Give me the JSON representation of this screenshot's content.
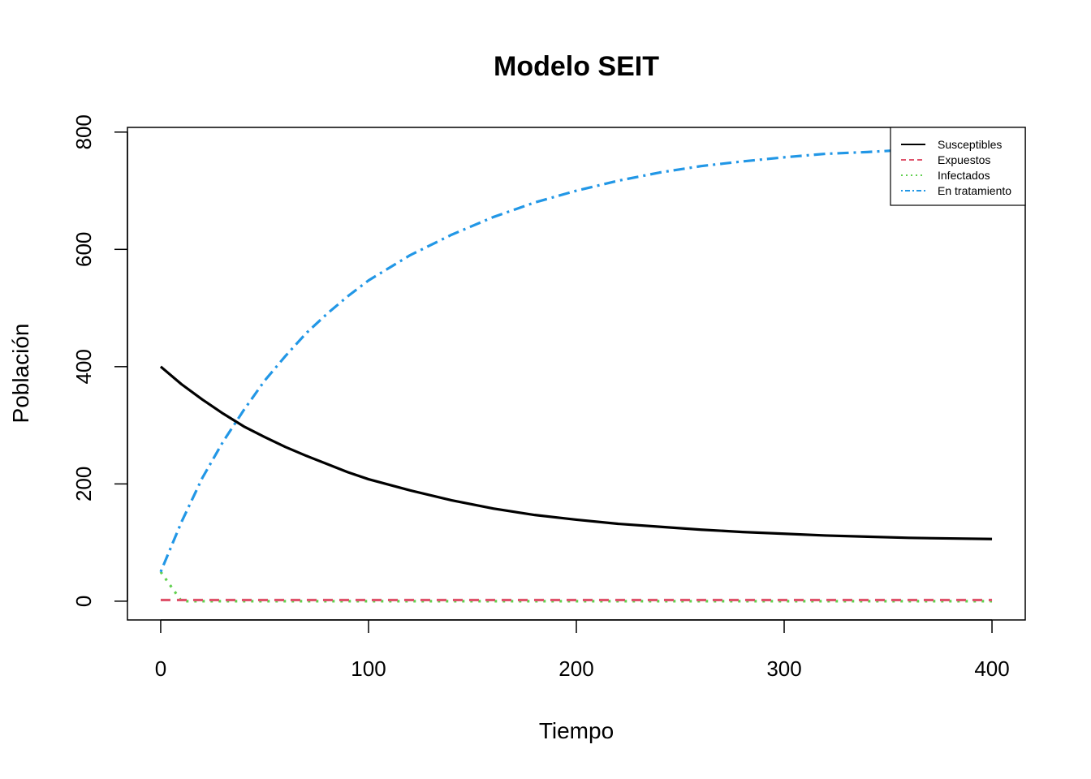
{
  "chart_data": {
    "type": "line",
    "title": "Modelo SEIT",
    "xlabel": "Tiempo",
    "ylabel": "Población",
    "xlim": [
      -16,
      416
    ],
    "ylim": [
      -32,
      808
    ],
    "xticks": [
      0,
      100,
      200,
      300,
      400
    ],
    "yticks": [
      0,
      200,
      400,
      600,
      800
    ],
    "legend_position": "top-right",
    "grid": false,
    "x": [
      0,
      10,
      20,
      30,
      40,
      50,
      60,
      70,
      80,
      90,
      100,
      120,
      140,
      160,
      180,
      200,
      220,
      240,
      260,
      280,
      300,
      320,
      340,
      360,
      380,
      400
    ],
    "series": [
      {
        "name": "Susceptibles",
        "color": "#000000",
        "dash": "solid",
        "values": [
          400,
          370,
          344,
          320,
          298,
          280,
          263,
          248,
          234,
          220,
          208,
          189,
          172,
          158,
          147,
          139,
          132,
          127,
          122,
          118,
          115,
          112,
          110,
          108,
          107,
          106
        ]
      },
      {
        "name": "Expuestos",
        "color": "#DF536B",
        "dash": "dashed",
        "values": [
          2,
          2,
          2,
          2,
          2,
          2,
          2,
          2,
          2,
          2,
          2,
          2,
          2,
          2,
          2,
          2,
          2,
          2,
          2,
          2,
          2,
          2,
          2,
          2,
          2,
          2
        ]
      },
      {
        "name": "Infectados",
        "color": "#61D04F",
        "dash": "dotted",
        "values": [
          50,
          0,
          0,
          0,
          0,
          0,
          0,
          0,
          0,
          0,
          0,
          0,
          0,
          0,
          0,
          0,
          0,
          0,
          0,
          0,
          0,
          0,
          0,
          0,
          0,
          0
        ]
      },
      {
        "name": "En tratamiento",
        "color": "#2297E6",
        "dash": "dotdash",
        "values": [
          50,
          135,
          210,
          272,
          326,
          376,
          418,
          457,
          490,
          520,
          547,
          590,
          625,
          655,
          680,
          700,
          717,
          731,
          742,
          750,
          757,
          763,
          766,
          770,
          773,
          775
        ]
      }
    ]
  }
}
